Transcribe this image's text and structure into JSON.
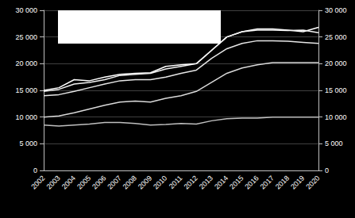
{
  "chart_data": {
    "type": "line",
    "categories": [
      "2002",
      "2003",
      "2004",
      "2005",
      "2006",
      "2007",
      "2008",
      "2009",
      "2010",
      "2011",
      "2012",
      "2013",
      "2014",
      "2015",
      "2016",
      "2017",
      "2018",
      "2019",
      "2020"
    ],
    "series": [
      {
        "color": "#ffffff",
        "values": [
          15000,
          15500,
          17000,
          16800,
          17500,
          18000,
          18200,
          18300,
          19500,
          19800,
          20000,
          22500,
          25000,
          26000,
          26500,
          26500,
          26300,
          26000,
          26800
        ]
      },
      {
        "color": "#f2f2f2",
        "values": [
          14800,
          15200,
          16200,
          16500,
          17000,
          17800,
          18000,
          18200,
          19000,
          19500,
          20000,
          22500,
          25000,
          26000,
          26300,
          26300,
          26200,
          26300,
          25800
        ]
      },
      {
        "color": "#e6e6e6",
        "values": [
          14000,
          14200,
          14800,
          15500,
          16200,
          16800,
          17000,
          17000,
          17500,
          18200,
          18800,
          21000,
          22800,
          23800,
          24300,
          24300,
          24200,
          24000,
          23800
        ]
      },
      {
        "color": "#d9d9d9",
        "values": [
          10000,
          10200,
          10800,
          11500,
          12200,
          12800,
          13000,
          12800,
          13500,
          14000,
          14800,
          16500,
          18200,
          19200,
          19800,
          20200,
          20200,
          20200,
          20200
        ]
      },
      {
        "color": "#bfbfbf",
        "values": [
          8500,
          8300,
          8500,
          8700,
          9000,
          9000,
          8800,
          8500,
          8600,
          8800,
          8700,
          9300,
          9700,
          9800,
          9800,
          10000,
          10000,
          10000,
          10000
        ]
      }
    ],
    "ylim": [
      0,
      30000
    ],
    "yticks": [
      0,
      {
        "value": 5000,
        "label": "5 000"
      },
      {
        "value": 10000,
        "label": "10 000"
      },
      {
        "value": 15000,
        "label": "15 000"
      },
      {
        "value": 20000,
        "label": "20 000"
      },
      {
        "value": 25000,
        "label": "25 000"
      },
      {
        "value": 30000,
        "label": "30 000"
      }
    ],
    "y2lim": [
      0,
      30000
    ],
    "y2ticks": [
      0,
      {
        "value": 5000,
        "label": "5 000"
      },
      {
        "value": 10000,
        "label": "10 000"
      },
      {
        "value": 15000,
        "label": "15 000"
      },
      {
        "value": 20000,
        "label": "20 000"
      },
      {
        "value": 25000,
        "label": "25 000"
      },
      {
        "value": 30000,
        "label": "30 000"
      }
    ],
    "grid": true
  }
}
